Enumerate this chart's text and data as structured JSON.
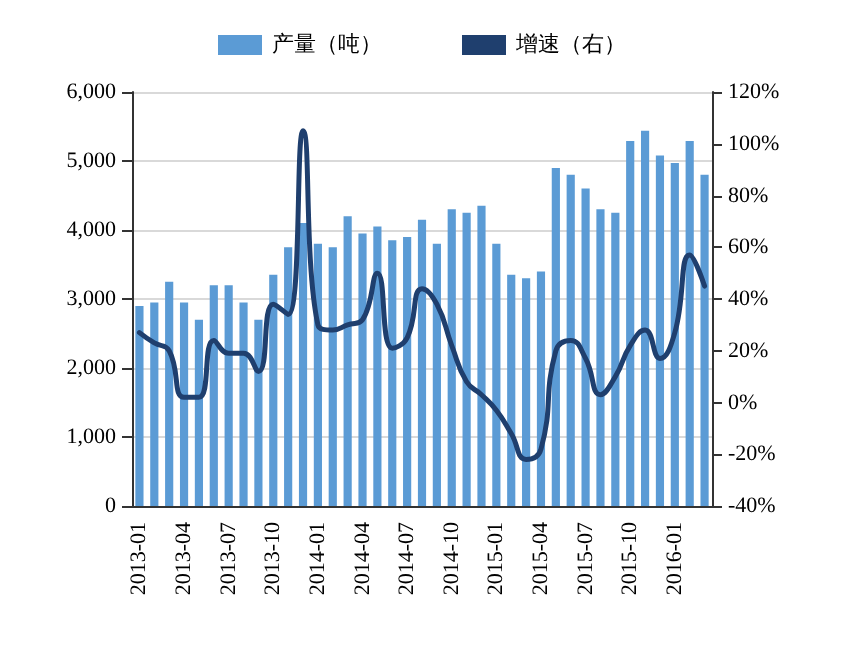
{
  "chart_data": {
    "type": "bar",
    "categories": [
      "2013-01",
      null,
      null,
      "2013-04",
      null,
      null,
      "2013-07",
      null,
      null,
      "2013-10",
      null,
      null,
      "2014-01",
      null,
      null,
      "2014-04",
      null,
      null,
      "2014-07",
      null,
      null,
      "2014-10",
      null,
      null,
      "2015-01",
      null,
      null,
      "2015-04",
      null,
      null,
      "2015-07",
      null,
      null,
      "2015-10",
      null,
      null,
      "2016-01",
      null,
      null
    ],
    "series": [
      {
        "name": "产量（吨）",
        "color": "#5b9bd5",
        "values": [
          2900,
          2950,
          3250,
          2950,
          2700,
          3200,
          3200,
          2950,
          2700,
          3350,
          3750,
          4100,
          3800,
          3750,
          4200,
          3950,
          4050,
          3850,
          3900,
          4150,
          3800,
          4300,
          4250,
          4350,
          3800,
          3350,
          3300,
          3400,
          4900,
          4800,
          4600,
          4300,
          4250,
          5290,
          5440,
          5080,
          4970,
          5290,
          4800
        ]
      },
      {
        "name": "增速（右）",
        "type": "line",
        "axis": "y2",
        "color": "#1f3f6e",
        "values": [
          27,
          23,
          20,
          2,
          2,
          24,
          19,
          19,
          12,
          38,
          34,
          105,
          30,
          28,
          30,
          32,
          50,
          21,
          25,
          44,
          38,
          22,
          8,
          3,
          -3,
          -12,
          -22,
          -18,
          20,
          24,
          17,
          3,
          10,
          22,
          28,
          17,
          27,
          57,
          45
        ]
      }
    ],
    "ylim": [
      0,
      6000
    ],
    "yticks": [
      {
        "value": 0,
        "label": "0"
      },
      {
        "value": 1000,
        "label": "1,000"
      },
      {
        "value": 2000,
        "label": "2,000"
      },
      {
        "value": 3000,
        "label": "3,000"
      },
      {
        "value": 4000,
        "label": "4,000"
      },
      {
        "value": 5000,
        "label": "5,000"
      },
      {
        "value": 6000,
        "label": "6,000"
      }
    ],
    "y2lim": [
      -40,
      120
    ],
    "y2ticks": [
      {
        "value": -40,
        "label": "-40%"
      },
      {
        "value": -20,
        "label": "-20%"
      },
      {
        "value": 0,
        "label": "0%"
      },
      {
        "value": 20,
        "label": "20%"
      },
      {
        "value": 40,
        "label": "40%"
      },
      {
        "value": 60,
        "label": "60%"
      },
      {
        "value": 80,
        "label": "80%"
      },
      {
        "value": 100,
        "label": "100%"
      },
      {
        "value": 120,
        "label": "120%"
      }
    ],
    "grid": "y",
    "legend": "top",
    "marker": "none",
    "line_style": "solid"
  }
}
